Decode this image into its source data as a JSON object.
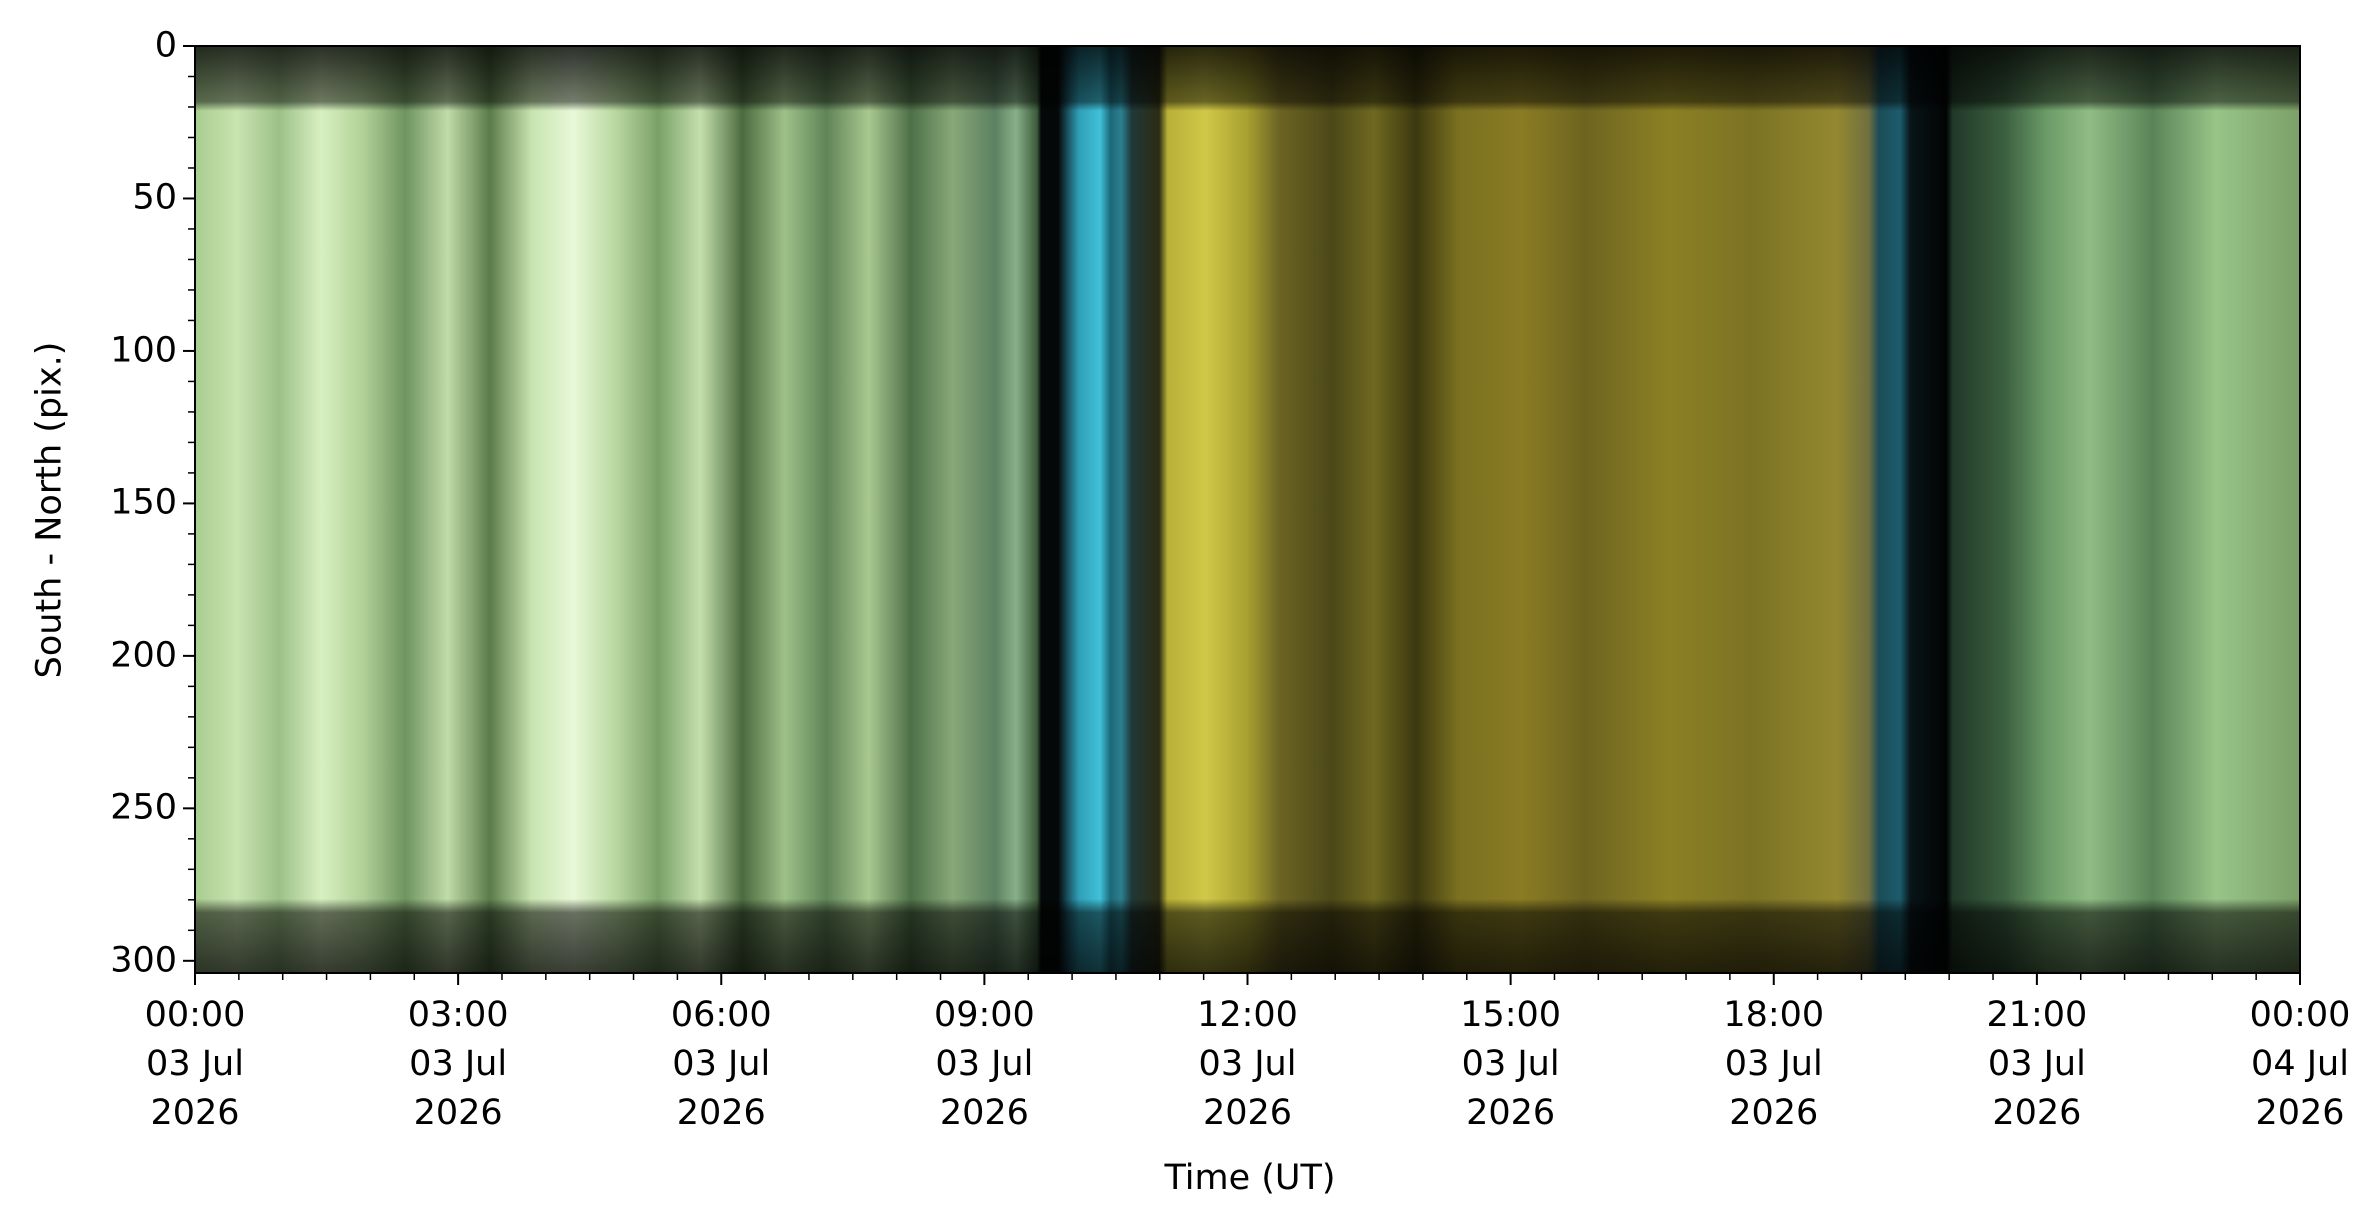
{
  "chart_data": {
    "type": "keogram",
    "xlabel": "Time (UT)",
    "ylabel": "South - North (pix.)",
    "xlim": [
      0,
      24
    ],
    "xticks": [
      {
        "value": 0,
        "label": "00:00\n03 Jul\n2026"
      },
      {
        "value": 3,
        "label": "03:00\n03 Jul\n2026"
      },
      {
        "value": 6,
        "label": "06:00\n03 Jul\n2026"
      },
      {
        "value": 9,
        "label": "09:00\n03 Jul\n2026"
      },
      {
        "value": 12,
        "label": "12:00\n03 Jul\n2026"
      },
      {
        "value": 15,
        "label": "15:00\n03 Jul\n2026"
      },
      {
        "value": 18,
        "label": "18:00\n03 Jul\n2026"
      },
      {
        "value": 21,
        "label": "21:00\n03 Jul\n2026"
      },
      {
        "value": 24,
        "label": "00:00\n04 Jul\n2026"
      }
    ],
    "xminor": 0.5,
    "ylim": [
      0,
      304
    ],
    "yinverted": true,
    "yticks": [
      0,
      50,
      100,
      150,
      200,
      250,
      300
    ],
    "yminor": 10
  }
}
